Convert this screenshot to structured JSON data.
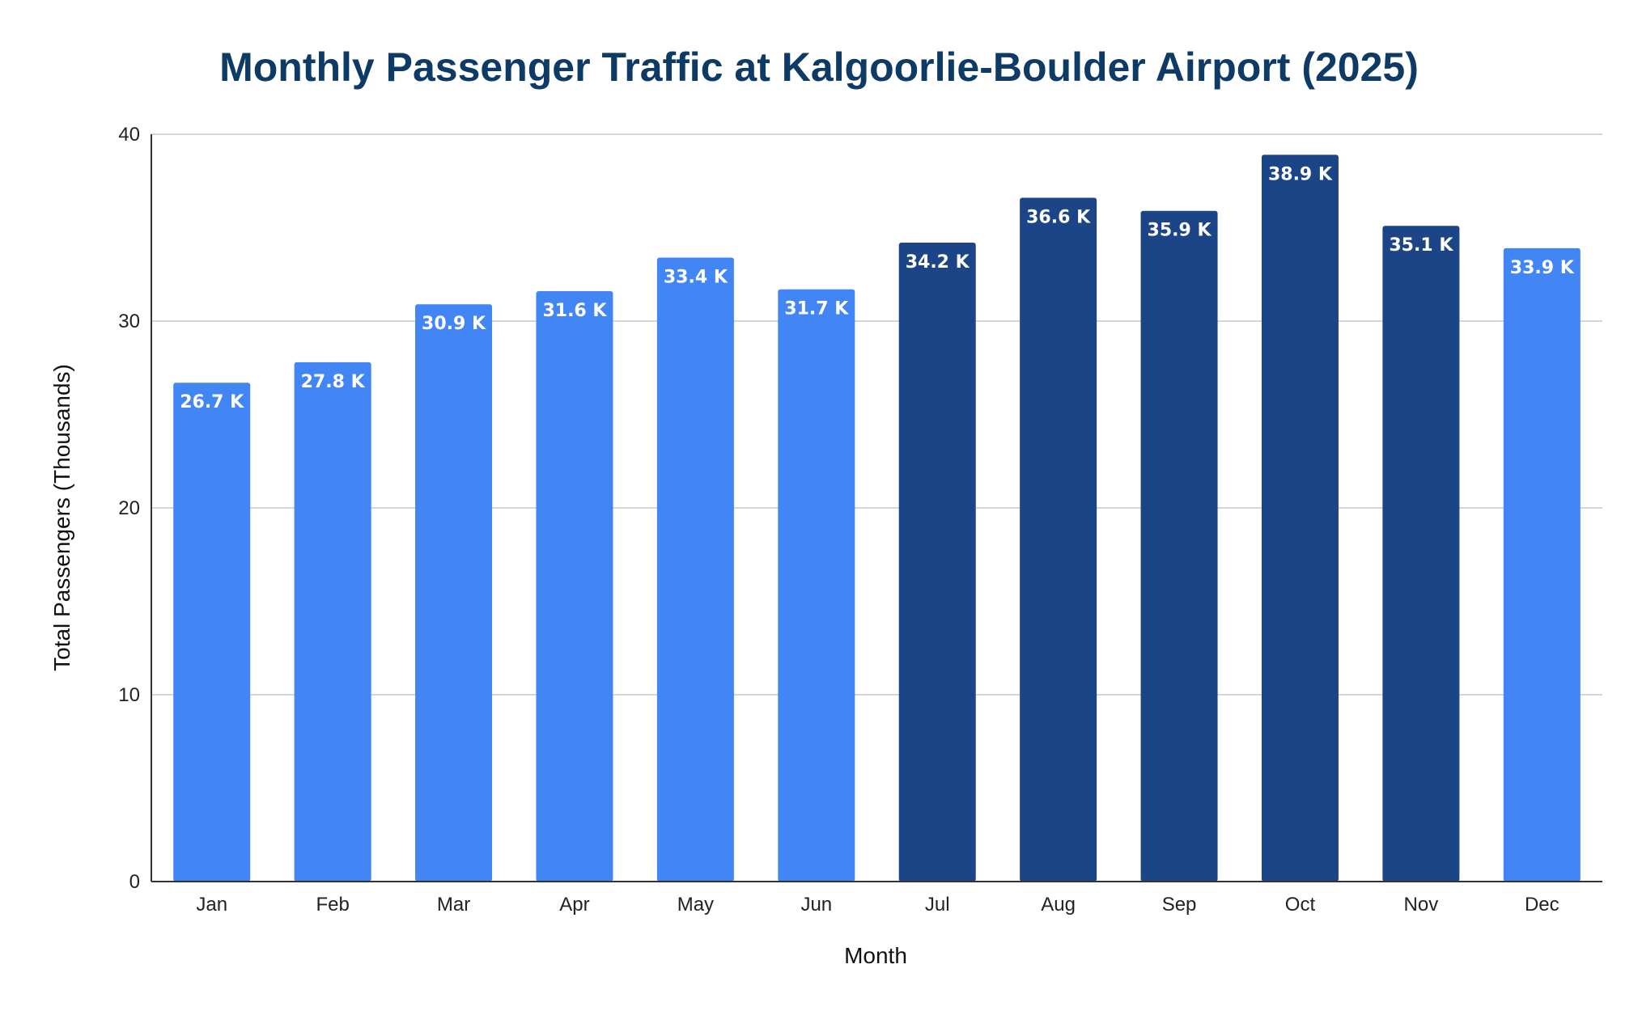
{
  "chart_data": {
    "type": "bar",
    "title": "Monthly Passenger Traffic at Kalgoorlie-Boulder Airport (2025)",
    "xlabel": "Month",
    "ylabel": "Total Passengers (Thousands)",
    "ylim": [
      0,
      40
    ],
    "yticks": [
      "0",
      "10",
      "20",
      "30",
      "40"
    ],
    "grid": true,
    "categories": [
      "Jan",
      "Feb",
      "Mar",
      "Apr",
      "May",
      "Jun",
      "Jul",
      "Aug",
      "Sep",
      "Oct",
      "Nov",
      "Dec"
    ],
    "values": [
      26.7,
      27.8,
      30.9,
      31.6,
      33.4,
      31.7,
      34.2,
      36.6,
      35.9,
      38.9,
      35.1,
      33.9
    ],
    "data_labels": [
      "26.7 K",
      "27.8 K",
      "30.9 K",
      "31.6 K",
      "33.4 K",
      "31.7 K",
      "34.2 K",
      "36.6 K",
      "35.9 K",
      "38.9 K",
      "35.1 K",
      "33.9 K"
    ],
    "bar_colors": [
      "#4285f4",
      "#4285f4",
      "#4285f4",
      "#4285f4",
      "#4285f4",
      "#4285f4",
      "#1c4587",
      "#1c4587",
      "#1c4587",
      "#1c4587",
      "#1c4587",
      "#4285f4"
    ],
    "colors": {
      "title": "#0d3b66",
      "light_bar": "#4285f4",
      "dark_bar": "#1c4587",
      "grid": "#c8c8c8"
    }
  }
}
